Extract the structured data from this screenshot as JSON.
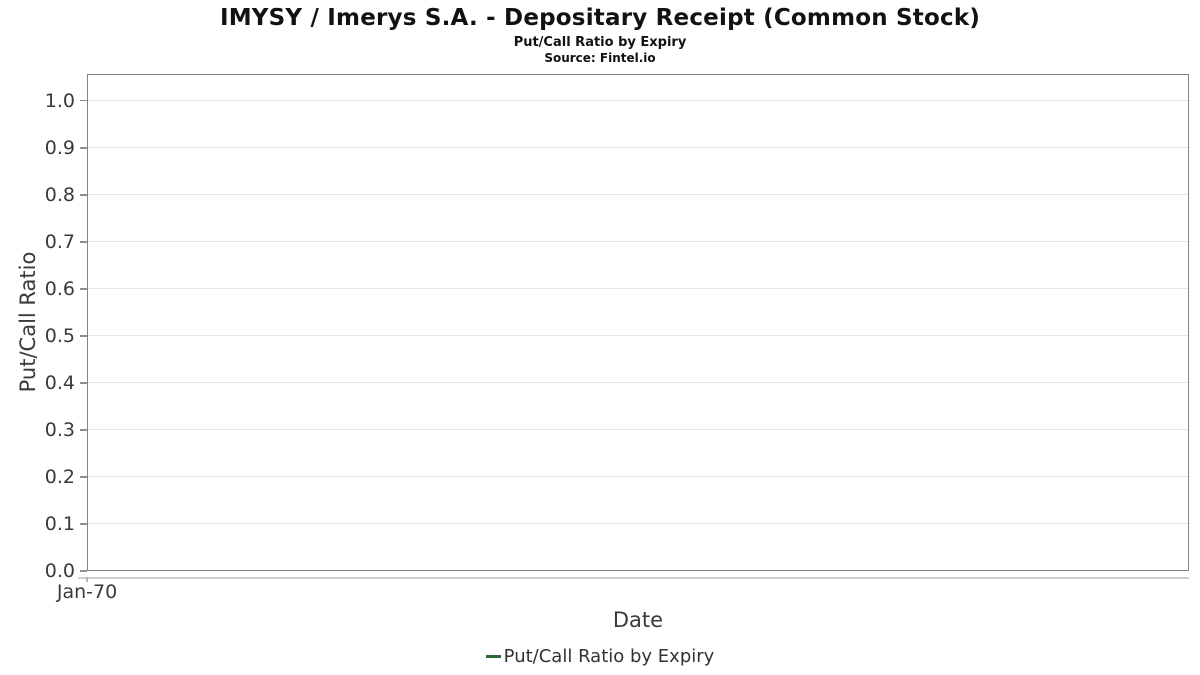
{
  "header": {
    "title": "IMYSY / Imerys S.A. - Depositary Receipt (Common Stock)",
    "subtitle": "Put/Call Ratio by Expiry",
    "source": "Source: Fintel.io"
  },
  "chart_data": {
    "type": "line",
    "title": "IMYSY / Imerys S.A. - Depositary Receipt (Common Stock)",
    "subtitle": "Put/Call Ratio by Expiry",
    "source": "Source: Fintel.io",
    "xlabel": "Date",
    "ylabel": "Put/Call Ratio",
    "ylim": [
      0.0,
      1.057
    ],
    "yticks": [
      "0.0",
      "0.1",
      "0.2",
      "0.3",
      "0.4",
      "0.5",
      "0.6",
      "0.7",
      "0.8",
      "0.9",
      "1.0"
    ],
    "xticks": [
      {
        "label": "Jan-70",
        "frac": 0.0
      }
    ],
    "grid": "horizontal",
    "plot_border_color": "#858585",
    "gridline_color": "#e6e6e6",
    "legend": {
      "position": "bottom",
      "entries": [
        {
          "label": "Put/Call Ratio by Expiry",
          "color": "#2e6639"
        }
      ]
    },
    "series": [
      {
        "name": "Put/Call Ratio by Expiry",
        "color": "#2e6639",
        "points": []
      }
    ]
  }
}
